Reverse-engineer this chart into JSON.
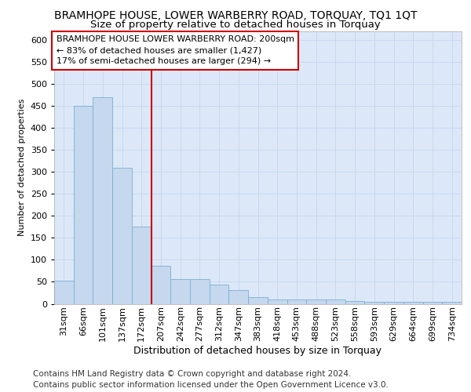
{
  "title": "BRAMHOPE HOUSE, LOWER WARBERRY ROAD, TORQUAY, TQ1 1QT",
  "subtitle": "Size of property relative to detached houses in Torquay",
  "xlabel": "Distribution of detached houses by size in Torquay",
  "ylabel": "Number of detached properties",
  "categories": [
    "31sqm",
    "66sqm",
    "101sqm",
    "137sqm",
    "172sqm",
    "207sqm",
    "242sqm",
    "277sqm",
    "312sqm",
    "347sqm",
    "383sqm",
    "418sqm",
    "453sqm",
    "488sqm",
    "523sqm",
    "558sqm",
    "593sqm",
    "629sqm",
    "664sqm",
    "699sqm",
    "734sqm"
  ],
  "values": [
    53,
    450,
    470,
    310,
    175,
    87,
    57,
    57,
    43,
    31,
    15,
    9,
    9,
    9,
    9,
    7,
    4,
    4,
    4,
    4,
    5
  ],
  "bar_color": "#c5d8ee",
  "bar_edge_color": "#7bafd4",
  "bar_edge_width": 0.6,
  "highlight_line_color": "#cc0000",
  "annotation_line1": "BRAMHOPE HOUSE LOWER WARBERRY ROAD: 200sqm",
  "annotation_line2": "← 83% of detached houses are smaller (1,427)",
  "annotation_line3": "17% of semi-detached houses are larger (294) →",
  "annotation_box_color": "#cc0000",
  "annotation_box_fill": "#ffffff",
  "ylim": [
    0,
    620
  ],
  "yticks": [
    0,
    50,
    100,
    150,
    200,
    250,
    300,
    350,
    400,
    450,
    500,
    550,
    600
  ],
  "grid_color": "#c8d8f0",
  "plot_bg_color": "#dce8f8",
  "footer1": "Contains HM Land Registry data © Crown copyright and database right 2024.",
  "footer2": "Contains public sector information licensed under the Open Government Licence v3.0.",
  "title_fontsize": 10,
  "subtitle_fontsize": 9.5,
  "xlabel_fontsize": 9,
  "ylabel_fontsize": 8,
  "tick_fontsize": 8,
  "annotation_fontsize": 8,
  "footer_fontsize": 7.5
}
